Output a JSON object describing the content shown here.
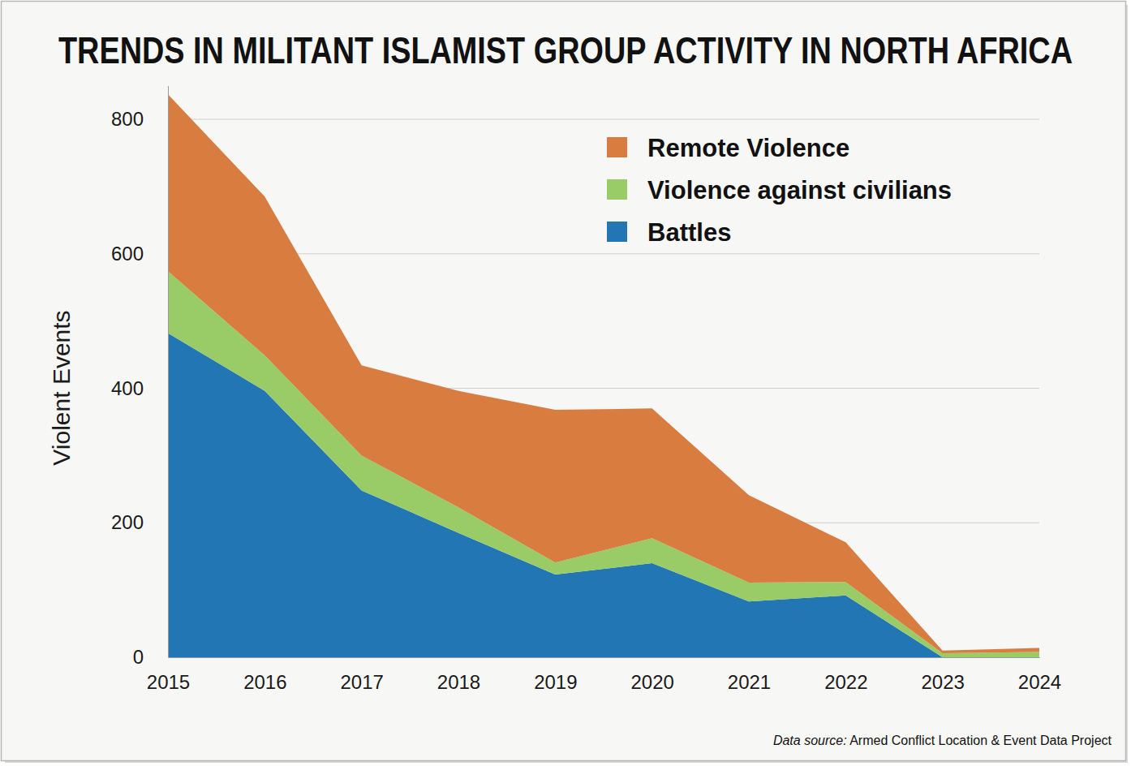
{
  "chart_data": {
    "type": "area",
    "stacked": true,
    "title": "TRENDS IN MILITANT ISLAMIST GROUP ACTIVITY IN NORTH AFRICA",
    "y_label": "Violent Events",
    "source": "Data source: Armed Conflict Location & Event Data Project",
    "x": [
      2015,
      2016,
      2017,
      2018,
      2019,
      2020,
      2021,
      2022,
      2023,
      2024
    ],
    "xlim": [
      2015,
      2024
    ],
    "xticks": [
      2015,
      2016,
      2017,
      2018,
      2019,
      2020,
      2021,
      2022,
      2023,
      2024
    ],
    "ylim": [
      0,
      850
    ],
    "yticks": [
      0,
      200,
      400,
      600,
      800
    ],
    "grid": true,
    "legend": "top-right",
    "series": [
      {
        "name": "Battles",
        "color": "#2276b4",
        "values": [
          482,
          396,
          248,
          185,
          123,
          140,
          83,
          92,
          0,
          0
        ]
      },
      {
        "name": "Violence against civilians",
        "color": "#99cc66",
        "values": [
          92,
          53,
          52,
          38,
          18,
          37,
          28,
          20,
          6,
          8
        ]
      },
      {
        "name": "Remote Violence",
        "color": "#d97c40",
        "values": [
          263,
          236,
          134,
          173,
          227,
          193,
          130,
          59,
          4,
          6
        ]
      }
    ]
  }
}
